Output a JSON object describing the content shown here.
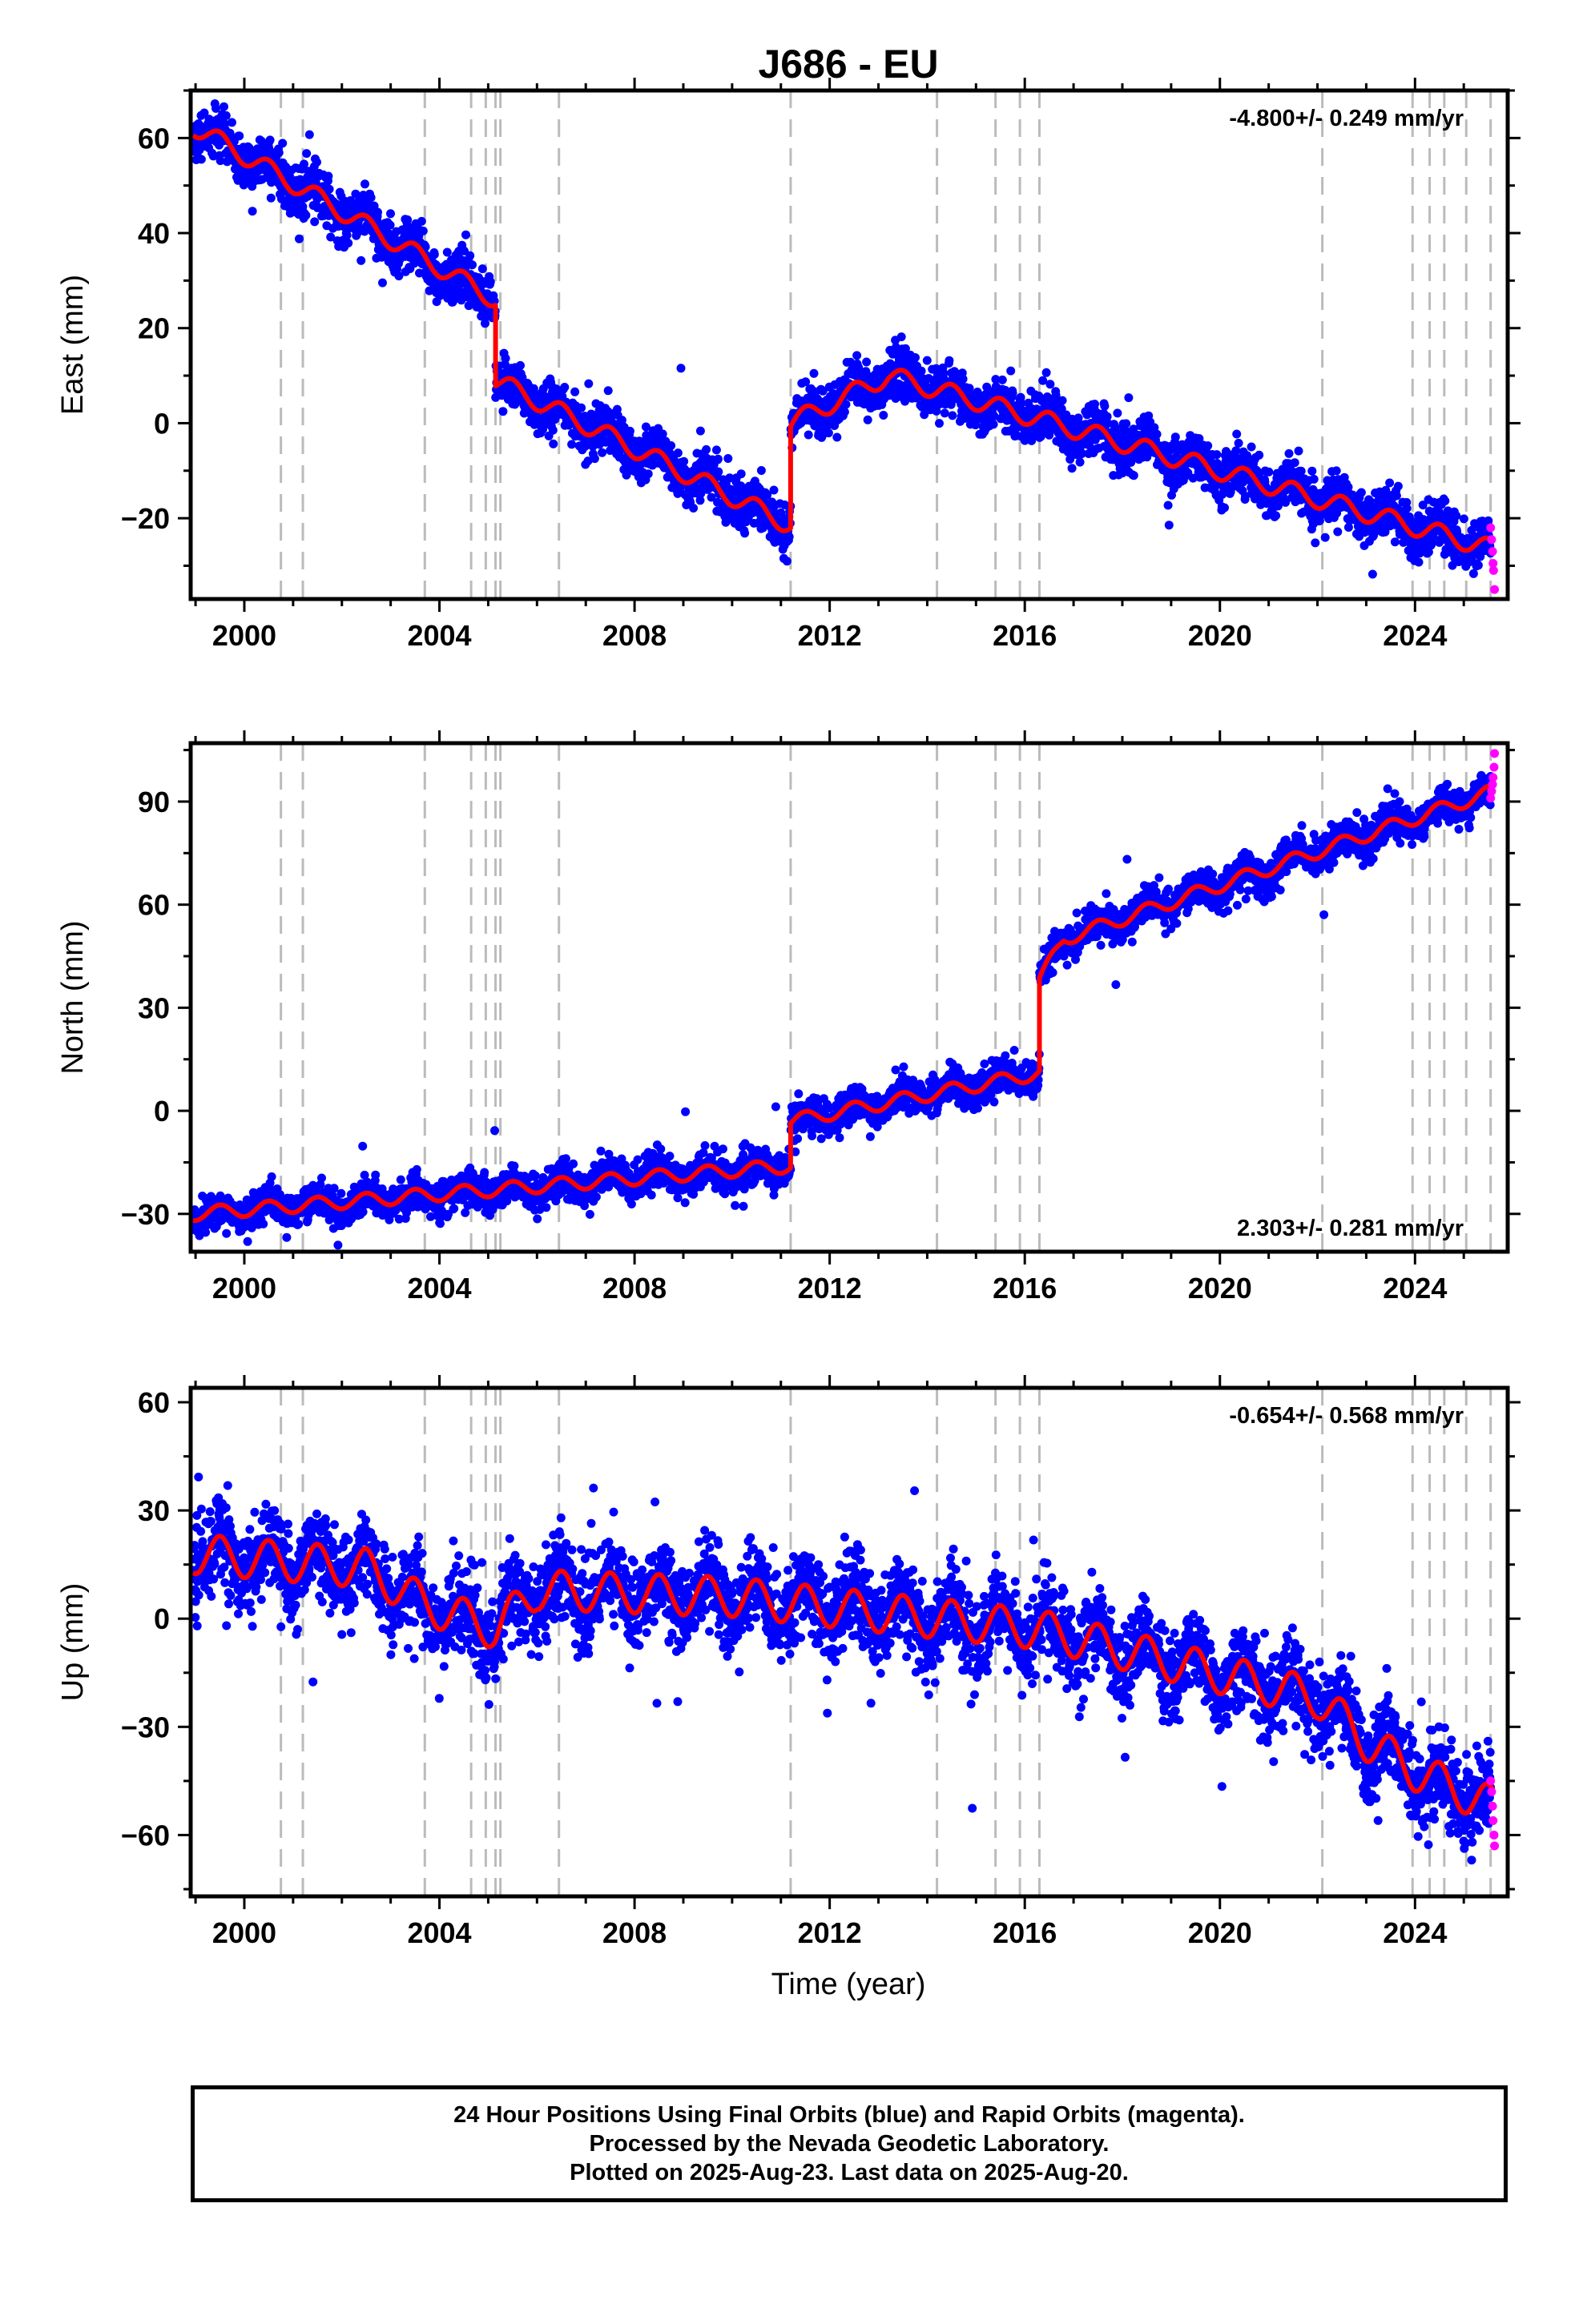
{
  "title": "J686 - EU",
  "xlabel": "Time (year)",
  "colors": {
    "final": "#0000ff",
    "rapid": "#ff00ff",
    "model": "#ff0000",
    "dashed": "#bbbbbb"
  },
  "footer": {
    "line1": "24 Hour Positions Using Final Orbits (blue) and Rapid Orbits (magenta).",
    "line2": "Processed by the Nevada Geodetic Laboratory.",
    "line3": "Plotted on 2025-Aug-23. Last data on 2025-Aug-20."
  },
  "chart_data": [
    {
      "type": "scatter",
      "ylabel": "East (mm)",
      "rate": "-4.800+/- 0.249 mm/yr",
      "xlim": [
        1998.9,
        2025.9
      ],
      "ylim": [
        -37,
        70
      ],
      "xticks": [
        2000,
        2004,
        2008,
        2012,
        2016,
        2020,
        2024
      ],
      "yticks": [
        60,
        40,
        20,
        0,
        -20
      ],
      "ytick_labels": [
        "60",
        "40",
        "20",
        "0",
        "−20"
      ],
      "events": [
        2000.75,
        2001.2,
        2003.7,
        2004.65,
        2004.95,
        2005.15,
        2005.25,
        2006.45,
        2011.2,
        2014.2,
        2015.4,
        2015.9,
        2016.3,
        2022.1,
        2023.95,
        2024.3,
        2024.6,
        2025.05,
        2025.55
      ],
      "model": {
        "trend": [
          [
            1998.95,
            62.5
          ],
          [
            2005.15,
            26
          ],
          [
            2005.15,
            9
          ],
          [
            2011.2,
            -21.5
          ],
          [
            2011.2,
            0
          ],
          [
            2013.2,
            10
          ],
          [
            2025.6,
            -26.5
          ]
        ],
        "seasonal_amplitude": 2
      },
      "scatter_sigma": 2.5,
      "rapid_points": [
        [
          2025.55,
          -22
        ],
        [
          2025.57,
          -24.5
        ],
        [
          2025.59,
          -27
        ],
        [
          2025.6,
          -29.5
        ],
        [
          2025.61,
          -31
        ],
        [
          2025.63,
          -35
        ]
      ]
    },
    {
      "type": "scatter",
      "ylabel": "North (mm)",
      "rate": "2.303+/- 0.281 mm/yr",
      "xlim": [
        1998.9,
        2025.9
      ],
      "ylim": [
        -41,
        107
      ],
      "xticks": [
        2000,
        2004,
        2008,
        2012,
        2016,
        2020,
        2024
      ],
      "yticks": [
        90,
        60,
        30,
        0,
        -30
      ],
      "ytick_labels": [
        "90",
        "60",
        "30",
        "0",
        "−30"
      ],
      "events": [
        2000.75,
        2001.2,
        2003.7,
        2004.65,
        2004.95,
        2005.15,
        2005.25,
        2006.45,
        2011.2,
        2014.2,
        2015.4,
        2015.9,
        2016.3,
        2022.1,
        2023.95,
        2024.3,
        2024.6,
        2025.05,
        2025.55
      ],
      "model": {
        "trend": [
          [
            1998.95,
            -30
          ],
          [
            2011.2,
            -16
          ],
          [
            2011.2,
            -3
          ],
          [
            2016.3,
            11
          ],
          [
            2016.3,
            38
          ],
          [
            2016.8,
            50
          ],
          [
            2025.6,
            93
          ]
        ],
        "seasonal_amplitude": 2
      },
      "scatter_sigma": 2.5,
      "rapid_points": [
        [
          2025.55,
          91
        ],
        [
          2025.57,
          93
        ],
        [
          2025.59,
          95
        ],
        [
          2025.6,
          97
        ],
        [
          2025.62,
          100
        ],
        [
          2025.63,
          104
        ]
      ]
    },
    {
      "type": "scatter",
      "ylabel": "Up (mm)",
      "rate": "-0.654+/- 0.568 mm/yr",
      "xlim": [
        1998.9,
        2025.9
      ],
      "ylim": [
        -77,
        64
      ],
      "xticks": [
        2000,
        2004,
        2008,
        2012,
        2016,
        2020,
        2024
      ],
      "yticks": [
        60,
        30,
        0,
        -30,
        -60
      ],
      "ytick_labels": [
        "60",
        "30",
        "0",
        "−30",
        "−60"
      ],
      "events": [
        2000.75,
        2001.2,
        2003.7,
        2004.65,
        2004.95,
        2005.15,
        2005.25,
        2006.45,
        2011.2,
        2014.2,
        2015.4,
        2015.9,
        2016.3,
        2022.1,
        2023.95,
        2024.3,
        2024.6,
        2025.05,
        2025.55
      ],
      "model": {
        "trend": [
          [
            1998.95,
            18
          ],
          [
            2002.5,
            14
          ],
          [
            2003.7,
            4
          ],
          [
            2005.15,
            -3
          ],
          [
            2006.0,
            8
          ],
          [
            2010.0,
            6
          ],
          [
            2016.3,
            -3
          ],
          [
            2022.0,
            -22
          ],
          [
            2023.0,
            -34
          ],
          [
            2023.95,
            -42
          ],
          [
            2025.6,
            -52
          ]
        ],
        "seasonal_amplitude": 5.5
      },
      "scatter_sigma": 6,
      "rapid_points": [
        [
          2025.55,
          -45
        ],
        [
          2025.57,
          -48
        ],
        [
          2025.59,
          -52
        ],
        [
          2025.6,
          -56
        ],
        [
          2025.62,
          -60
        ],
        [
          2025.63,
          -63
        ]
      ]
    }
  ]
}
